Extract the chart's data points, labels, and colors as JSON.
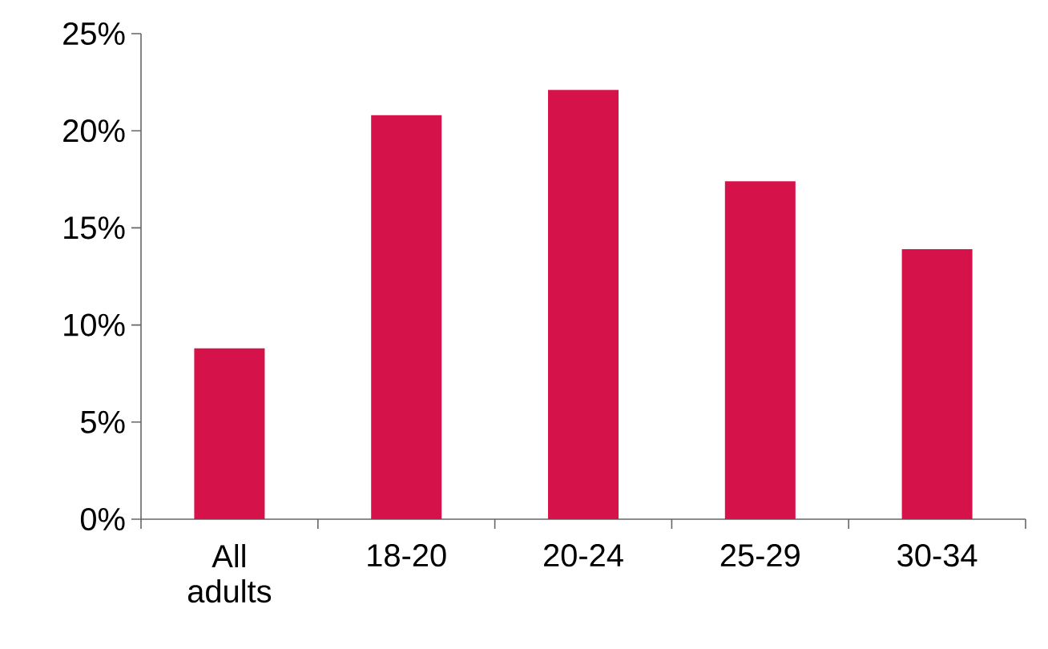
{
  "chart_data": {
    "type": "bar",
    "categories": [
      "All adults",
      "18-20",
      "20-24",
      "25-29",
      "30-34"
    ],
    "values": [
      8.8,
      20.8,
      22.1,
      17.4,
      13.9
    ],
    "color": "#d5124a",
    "ylim": [
      0,
      25
    ],
    "yticks": [
      {
        "value": 0,
        "label": "0%"
      },
      {
        "value": 5,
        "label": "5%"
      },
      {
        "value": 10,
        "label": "10%"
      },
      {
        "value": 15,
        "label": "15%"
      },
      {
        "value": 20,
        "label": "20%"
      },
      {
        "value": 25,
        "label": "25%"
      }
    ],
    "grid": false
  }
}
